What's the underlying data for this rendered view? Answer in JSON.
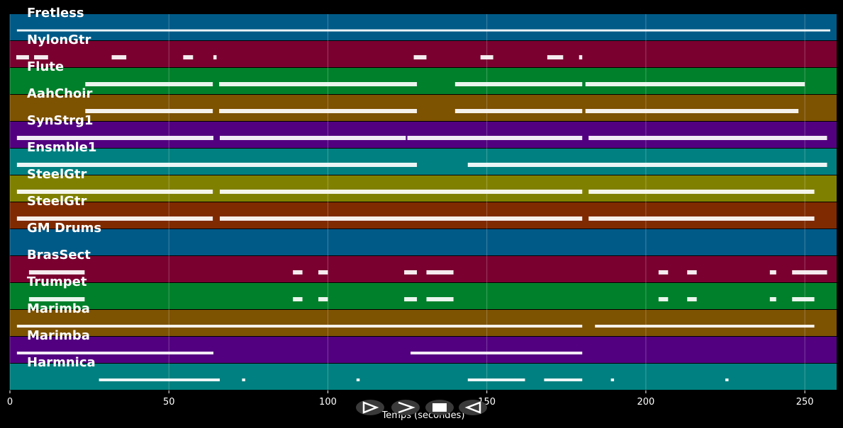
{
  "chart_data": {
    "type": "timeline",
    "xlabel": "Temps (secondes)",
    "xlim": [
      0,
      260
    ],
    "xticks": [
      0,
      50,
      100,
      150,
      200,
      250
    ],
    "grid": true,
    "tracks": [
      {
        "name": "Fretless",
        "color": "#005a87",
        "segments": [
          [
            2.2,
            258
          ]
        ]
      },
      {
        "name": "NylonGtr",
        "color": "#7a0030",
        "segments": [
          [
            2,
            6
          ],
          [
            7.6,
            12
          ],
          [
            32,
            36.6
          ],
          [
            54.5,
            57.6
          ],
          [
            64,
            65
          ],
          [
            127,
            131
          ],
          [
            148,
            152
          ],
          [
            169,
            174
          ],
          [
            179,
            180
          ]
        ]
      },
      {
        "name": "Flute",
        "color": "#00802a",
        "segments": [
          [
            23.7,
            63.8
          ],
          [
            65.8,
            128
          ],
          [
            140,
            180
          ],
          [
            181,
            250
          ]
        ]
      },
      {
        "name": "AahChoir",
        "color": "#7d5200",
        "segments": [
          [
            23.7,
            63.8
          ],
          [
            65.8,
            128
          ],
          [
            140,
            180
          ],
          [
            181,
            248
          ]
        ]
      },
      {
        "name": "SynStrg1",
        "color": "#520080",
        "segments": [
          [
            2.2,
            64
          ],
          [
            66,
            124.5
          ],
          [
            125,
            180
          ],
          [
            182,
            257
          ]
        ]
      },
      {
        "name": "Ensmble1",
        "color": "#008080",
        "segments": [
          [
            2.2,
            128
          ],
          [
            144,
            257
          ]
        ]
      },
      {
        "name": "SteelGtr",
        "color": "#808000",
        "segments": [
          [
            2.2,
            63.8
          ],
          [
            66,
            180
          ],
          [
            182,
            253
          ]
        ]
      },
      {
        "name": "SteelGtr",
        "color": "#7f2a00",
        "segments": [
          [
            2.2,
            63.8
          ],
          [
            66,
            180
          ],
          [
            182,
            253
          ]
        ]
      },
      {
        "name": "GM Drums",
        "color": "#005a87",
        "segments": []
      },
      {
        "name": "BrasSect",
        "color": "#7a0030",
        "segments": [
          [
            6,
            23.5
          ],
          [
            89,
            92
          ],
          [
            97,
            100
          ],
          [
            124,
            128
          ],
          [
            131,
            139.5
          ],
          [
            204,
            207
          ],
          [
            213,
            216
          ],
          [
            239,
            241
          ],
          [
            246,
            257
          ]
        ]
      },
      {
        "name": "Trumpet",
        "color": "#00802a",
        "segments": [
          [
            6,
            23.5
          ],
          [
            89,
            92
          ],
          [
            97,
            100
          ],
          [
            124,
            128
          ],
          [
            131,
            139.5
          ],
          [
            204,
            207
          ],
          [
            213,
            216
          ],
          [
            239,
            241
          ],
          [
            246,
            253
          ]
        ]
      },
      {
        "name": "Marimba",
        "color": "#7d5200",
        "segments": [
          [
            2.2,
            180
          ],
          [
            184,
            253
          ]
        ]
      },
      {
        "name": "Marimba",
        "color": "#520080",
        "segments": [
          [
            2.2,
            64
          ],
          [
            126,
            180
          ]
        ]
      },
      {
        "name": "Harmnica",
        "color": "#008080",
        "segments": [
          [
            28,
            66
          ],
          [
            73,
            74
          ],
          [
            109,
            110
          ],
          [
            144,
            162
          ],
          [
            168,
            180
          ],
          [
            189,
            190
          ],
          [
            225,
            226
          ]
        ]
      }
    ]
  }
}
